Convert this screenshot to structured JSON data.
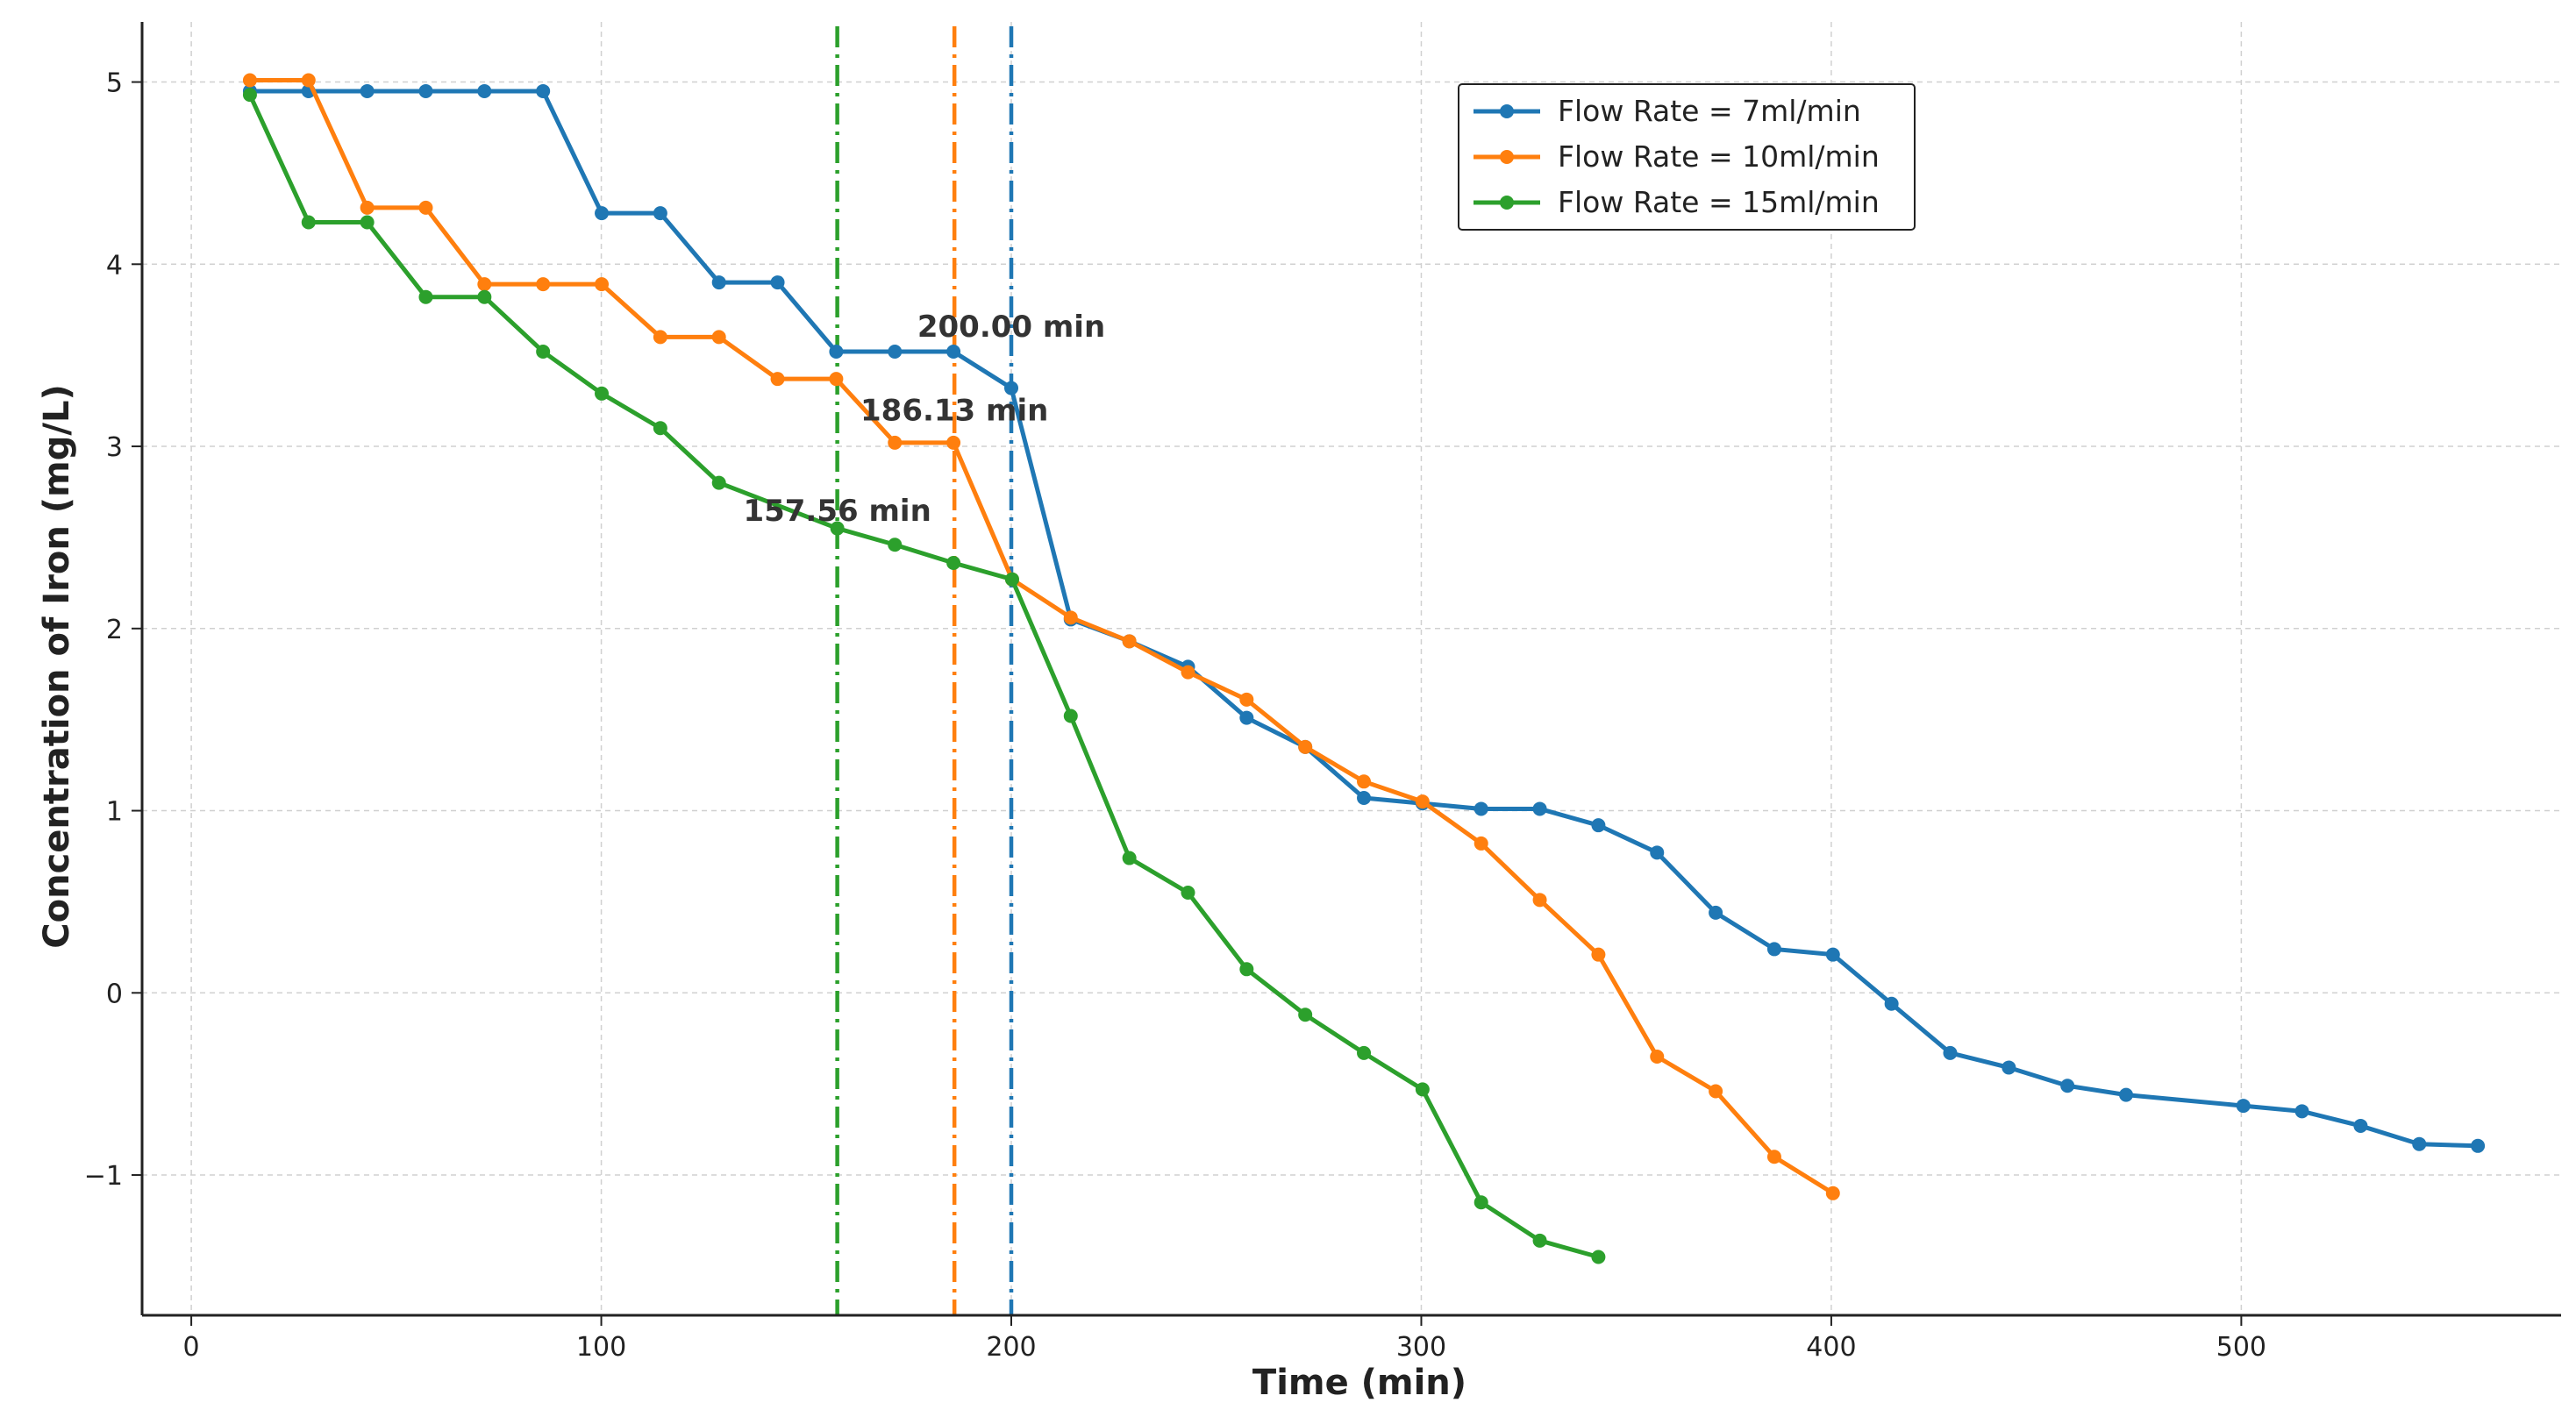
{
  "chart_data": {
    "type": "line",
    "title": "",
    "xlabel": "Time (min)",
    "ylabel": "Concentration of Iron (mg/L)",
    "xlim": [
      -12,
      578
    ],
    "ylim": [
      -1.77,
      5.33
    ],
    "xticks": [
      0,
      100,
      200,
      300,
      400,
      500
    ],
    "yticks": [
      -1,
      0,
      1,
      2,
      3,
      4,
      5
    ],
    "ytick_labels": [
      "−1",
      "0",
      "1",
      "2",
      "3",
      "4",
      "5"
    ],
    "grid": true,
    "legend_position": "top-right",
    "series": [
      {
        "name": "Flow Rate = 7ml/min",
        "color": "#1f77b4",
        "x": [
          14.3,
          28.6,
          42.9,
          57.2,
          71.5,
          85.8,
          100.1,
          114.4,
          128.7,
          143,
          157.3,
          171.6,
          185.9,
          200,
          214.5,
          228.8,
          243.1,
          257.4,
          271.7,
          286,
          300.3,
          314.6,
          328.9,
          343.2,
          357.5,
          371.8,
          386.1,
          400.4,
          414.7,
          429,
          443.3,
          457.6,
          471.9,
          500.5,
          514.8,
          529.1,
          543.4,
          557.7
        ],
        "y": [
          4.95,
          4.95,
          4.95,
          4.95,
          4.95,
          4.95,
          4.28,
          4.28,
          3.9,
          3.9,
          3.52,
          3.52,
          3.52,
          3.32,
          2.05,
          1.93,
          1.79,
          1.51,
          1.35,
          1.07,
          1.04,
          1.01,
          1.01,
          0.92,
          0.77,
          0.44,
          0.24,
          0.21,
          -0.06,
          -0.33,
          -0.41,
          -0.51,
          -0.56,
          -0.62,
          -0.65,
          -0.73,
          -0.83,
          -0.84
        ]
      },
      {
        "name": "Flow Rate = 10ml/min",
        "color": "#ff7f0e",
        "x": [
          14.3,
          28.6,
          42.9,
          57.2,
          71.5,
          85.8,
          100.1,
          114.4,
          128.7,
          143,
          157.3,
          171.6,
          185.9,
          200.2,
          214.5,
          228.8,
          243.1,
          257.4,
          271.7,
          286,
          300.3,
          314.6,
          328.9,
          343.2,
          357.5,
          371.8,
          386.1,
          400.4
        ],
        "y": [
          5.01,
          5.01,
          4.31,
          4.31,
          3.89,
          3.89,
          3.89,
          3.6,
          3.6,
          3.37,
          3.37,
          3.02,
          3.02,
          2.27,
          2.06,
          1.93,
          1.76,
          1.61,
          1.35,
          1.16,
          1.05,
          0.82,
          0.51,
          0.21,
          -0.35,
          -0.54,
          -0.9,
          -1.1
        ]
      },
      {
        "name": "Flow Rate = 15ml/min",
        "color": "#2ca02c",
        "x": [
          14.3,
          28.6,
          42.9,
          57.2,
          71.5,
          85.8,
          100.1,
          114.4,
          128.7,
          157.56,
          171.6,
          185.9,
          200.2,
          214.5,
          228.8,
          243.1,
          257.4,
          271.7,
          286,
          300.3,
          314.6,
          328.9,
          343.2
        ],
        "y": [
          4.93,
          4.23,
          4.23,
          3.82,
          3.82,
          3.52,
          3.29,
          3.1,
          2.8,
          2.55,
          2.46,
          2.36,
          2.27,
          1.52,
          0.74,
          0.55,
          0.13,
          -0.12,
          -0.33,
          -0.53,
          -1.15,
          -1.36,
          -1.45
        ]
      }
    ],
    "vertical_lines": [
      {
        "x": 157.56,
        "color": "#2ca02c",
        "label": "157.56 min",
        "label_y": 2.65
      },
      {
        "x": 186.13,
        "color": "#ff7f0e",
        "label": "186.13 min",
        "label_y": 3.2
      },
      {
        "x": 200.0,
        "color": "#1f77b4",
        "label": "200.00 min",
        "label_y": 3.66
      }
    ]
  }
}
